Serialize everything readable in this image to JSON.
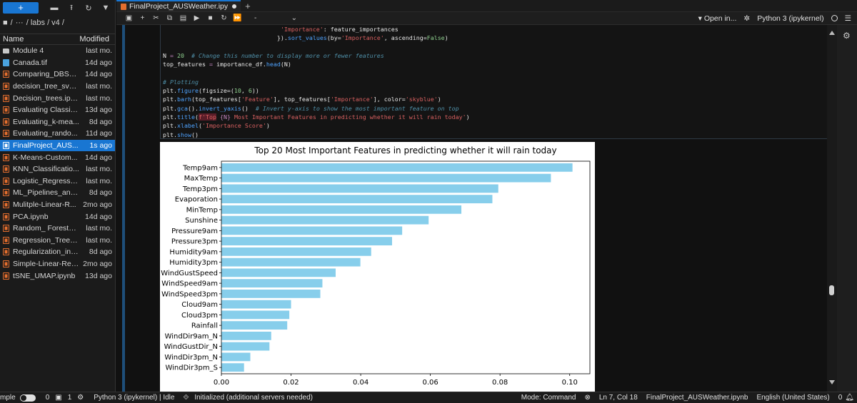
{
  "left": {
    "new_label": "+",
    "crumbs": {
      "root": "■",
      "sep": "/",
      "ellipsis": "···",
      "path": "/ labs / v4 /"
    },
    "header": {
      "name": "Name",
      "modified": "Modified"
    },
    "files": [
      {
        "name": "Module 4",
        "modified": "last mo.",
        "type": "folder"
      },
      {
        "name": "Canada.tif",
        "modified": "14d ago",
        "type": "img"
      },
      {
        "name": "Comparing_DBSca...",
        "modified": "14d ago",
        "type": "nb"
      },
      {
        "name": "decision_tree_svm...",
        "modified": "last mo.",
        "type": "nb"
      },
      {
        "name": "Decision_trees.ipy...",
        "modified": "last mo.",
        "type": "nb"
      },
      {
        "name": "Evaluating Classifi...",
        "modified": "13d ago",
        "type": "nb"
      },
      {
        "name": "Evaluating_k-mea...",
        "modified": "8d ago",
        "type": "nb"
      },
      {
        "name": "Evaluating_rando...",
        "modified": "11d ago",
        "type": "nb"
      },
      {
        "name": "FinalProject_AUS...",
        "modified": "1s ago",
        "type": "nb",
        "selected": true
      },
      {
        "name": "K-Means-Custom...",
        "modified": "14d ago",
        "type": "nb"
      },
      {
        "name": "KNN_Classificatio...",
        "modified": "last mo.",
        "type": "nb"
      },
      {
        "name": "Logistic_Regressio...",
        "modified": "last mo.",
        "type": "nb"
      },
      {
        "name": "ML_Pipelines_and...",
        "modified": "8d ago",
        "type": "nb"
      },
      {
        "name": "Mulitple-Linear-R...",
        "modified": "2mo ago",
        "type": "nb"
      },
      {
        "name": "PCA.ipynb",
        "modified": "14d ago",
        "type": "nb"
      },
      {
        "name": "Random_ Forests ...",
        "modified": "last mo.",
        "type": "nb"
      },
      {
        "name": "Regression_Trees_...",
        "modified": "last mo.",
        "type": "nb"
      },
      {
        "name": "Regularization_in_...",
        "modified": "8d ago",
        "type": "nb"
      },
      {
        "name": "Simple-Linear-Reg...",
        "modified": "2mo ago",
        "type": "nb"
      },
      {
        "name": "tSNE_UMAP.ipynb",
        "modified": "13d ago",
        "type": "nb"
      }
    ]
  },
  "tab": {
    "title": "FinalProject_AUSWeather.ipy",
    "add": "+"
  },
  "nbtoolbar": {
    "cell_type": "-",
    "open_in": "Open in...",
    "kernel": "Python 3 (ipykernel)"
  },
  "code": {
    "l1_a": "'Importance'",
    "l1_b": ": feature_importances",
    "l2_a": "}).",
    "l2_b": "sort_values",
    "l2_c": "(by=",
    "l2_d": "'Importance'",
    "l2_e": ", ascending=",
    "l2_f": "False",
    "l2_g": ")",
    "l4_a": "N",
    "l4_b": " = ",
    "l4_c": "20",
    "l4_d": "  # Change this number to display more or fewer features",
    "l5_a": "top_features",
    "l5_b": " = ",
    "l5_c": "importance_df.",
    "l5_d": "head",
    "l5_e": "(N)",
    "l7": "# Plotting",
    "l8_a": "plt.",
    "l8_b": "figure",
    "l8_c": "(figsize=(",
    "l8_d": "10",
    "l8_e": ", ",
    "l8_f": "6",
    "l8_g": "))",
    "l9_a": "plt.",
    "l9_b": "barh",
    "l9_c": "(top_features[",
    "l9_d": "'Feature'",
    "l9_e": "], top_features[",
    "l9_f": "'Importance'",
    "l9_g": "], color=",
    "l9_h": "'skyblue'",
    "l9_i": ")",
    "l10_a": "plt.",
    "l10_b": "gca",
    "l10_c": "().",
    "l10_d": "invert_yaxis",
    "l10_e": "()  ",
    "l10_f": "# Invert y-axis to show the most important feature on top",
    "l11_a": "plt.",
    "l11_b": "title",
    "l11_c": "(",
    "l11_d": "f'Top",
    "l11_e": " {N} ",
    "l11_f": "Most Important Features in predicting whether it will rain today'",
    "l11_g": ")",
    "l12_a": "plt.",
    "l12_b": "xlabel",
    "l12_c": "(",
    "l12_d": "'Importance Score'",
    "l12_e": ")",
    "l13_a": "plt.",
    "l13_b": "show",
    "l13_c": "()"
  },
  "chart_data": {
    "type": "bar",
    "orientation": "horizontal",
    "title": "Top 20 Most Important Features in predicting whether it will rain today",
    "xlabel": "",
    "ylabel": "",
    "categories": [
      "Temp9am",
      "MaxTemp",
      "Temp3pm",
      "Evaporation",
      "MinTemp",
      "Sunshine",
      "Pressure9am",
      "Pressure3pm",
      "Humidity9am",
      "Humidity3pm",
      "WindGustSpeed",
      "WindSpeed9am",
      "WindSpeed3pm",
      "Cloud9am",
      "Cloud3pm",
      "Rainfall",
      "WindDir9am_N",
      "WindGustDir_N",
      "WindDir3pm_N",
      "WindDir3pm_S"
    ],
    "values": [
      0.1008,
      0.0946,
      0.0795,
      0.0778,
      0.0689,
      0.0595,
      0.0519,
      0.049,
      0.043,
      0.0399,
      0.0328,
      0.029,
      0.0284,
      0.02,
      0.0195,
      0.0189,
      0.0143,
      0.0138,
      0.0083,
      0.0065
    ],
    "xlim": [
      0,
      0.1058
    ],
    "xticks": [
      0.0,
      0.02,
      0.04,
      0.06,
      0.08,
      0.1
    ],
    "xtick_labels": [
      "0.00",
      "0.02",
      "0.04",
      "0.06",
      "0.08",
      "0.10"
    ],
    "color": "#87ceeb"
  },
  "status": {
    "mode_toggle": "mple",
    "count_a": "0",
    "count_b": "1",
    "kernel_status": "Python 3 (ipykernel) | Idle",
    "init": "Initialized (additional servers needed)",
    "mode": "Mode: Command",
    "position": "Ln 7, Col 18",
    "filename": "FinalProject_AUSWeather.ipynb",
    "language": "English (United States)",
    "notifications": "0"
  }
}
